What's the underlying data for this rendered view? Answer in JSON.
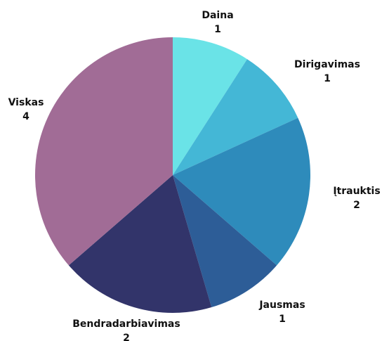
{
  "chart_data": {
    "type": "pie",
    "title": "",
    "slices": [
      {
        "label": "Daina",
        "value": 1,
        "color": "#6ae3e7"
      },
      {
        "label": "Dirigavimas",
        "value": 1,
        "color": "#44b7d6"
      },
      {
        "label": "Įtrauktis",
        "value": 2,
        "color": "#2e8bbb"
      },
      {
        "label": "Jausmas",
        "value": 1,
        "color": "#2d5d97"
      },
      {
        "label": "Bendradarbiavimas",
        "value": 2,
        "color": "#32346a"
      },
      {
        "label": "Viskas",
        "value": 4,
        "color": "#a16c96"
      }
    ],
    "start_angle_deg": 0,
    "direction": "clockwise",
    "legend": "none",
    "data_labels": "outside (name and value)"
  }
}
